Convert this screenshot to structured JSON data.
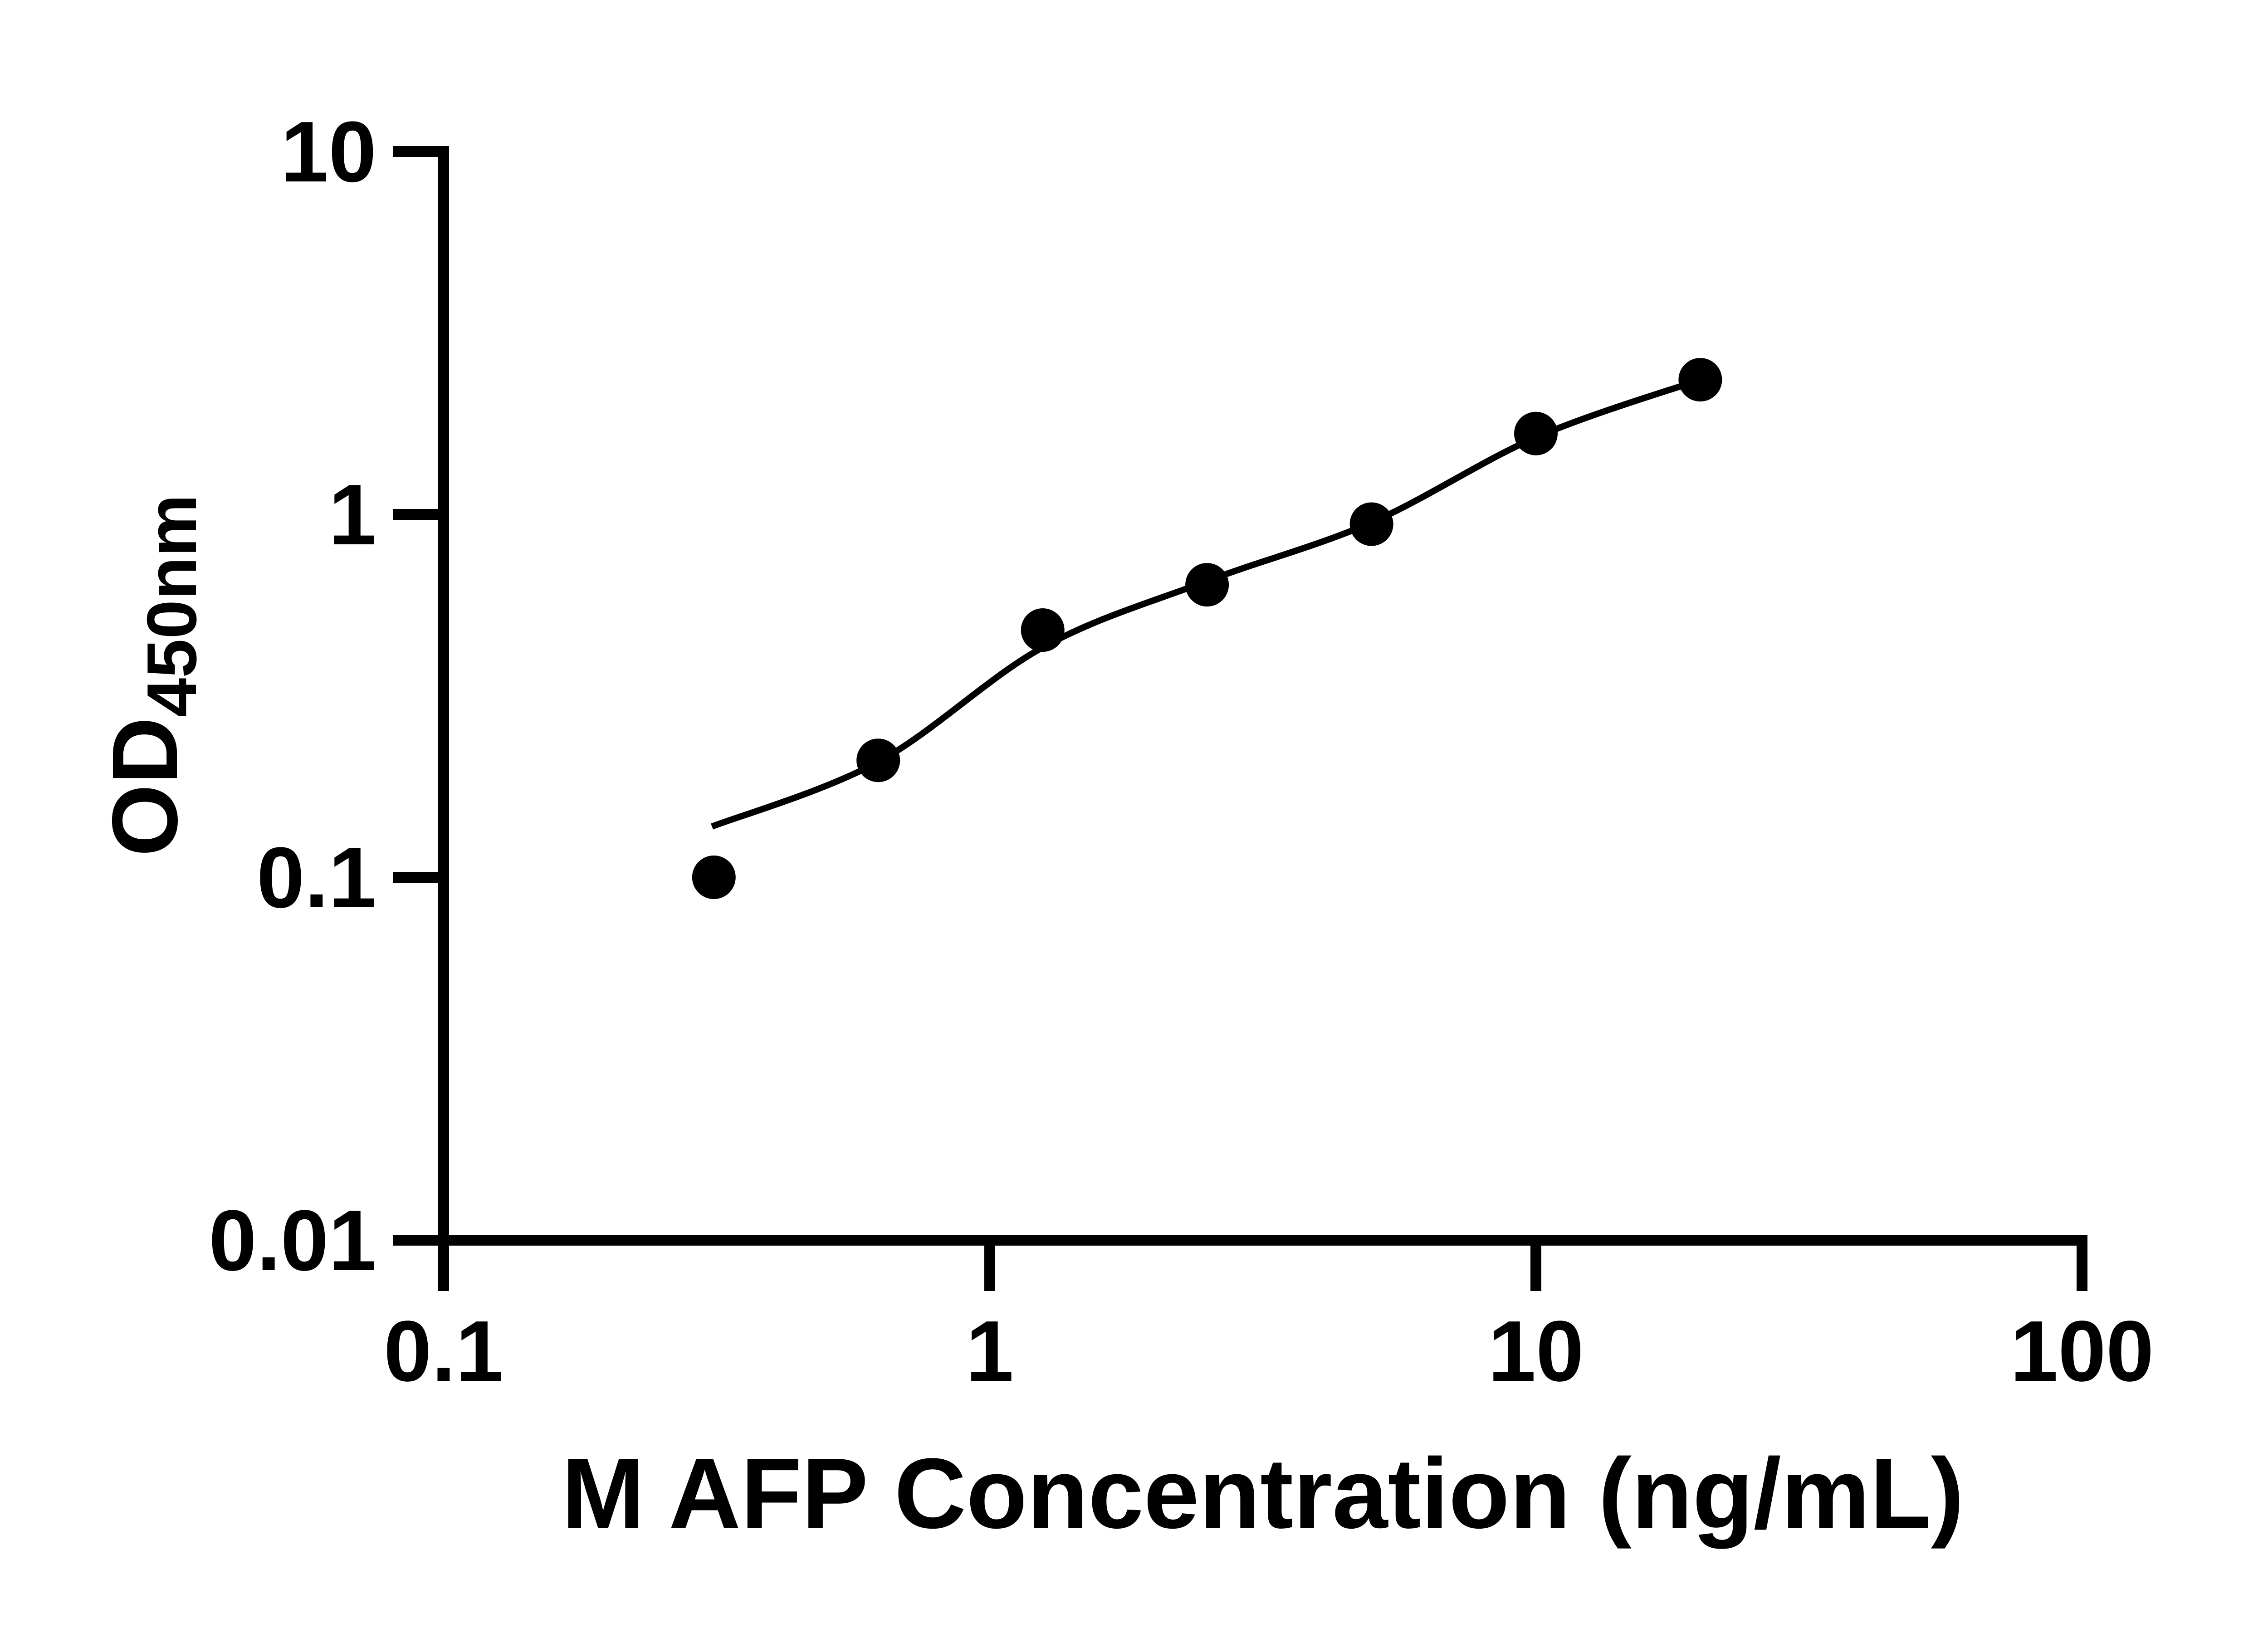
{
  "page": {
    "background": "#ffffff",
    "foreground": "#000000"
  },
  "chart_data": {
    "type": "scatter",
    "title": "",
    "xlabel": "M AFP Concentration (ng/mL)",
    "ylabel_main": "OD",
    "ylabel_sub": "450nm",
    "x_scale": "log",
    "y_scale": "log",
    "xlim": [
      0.1,
      100
    ],
    "ylim": [
      0.01,
      10
    ],
    "grid": false,
    "legend": null,
    "axis_color": "#000000",
    "marker_color": "#000000",
    "line_color": "#000000",
    "x_ticks": [
      {
        "value": 0.1,
        "label": "0.1"
      },
      {
        "value": 1,
        "label": "1"
      },
      {
        "value": 10,
        "label": "10"
      },
      {
        "value": 100,
        "label": "100"
      }
    ],
    "y_ticks": [
      {
        "value": 0.01,
        "label": "0.01"
      },
      {
        "value": 0.1,
        "label": "0.1"
      },
      {
        "value": 1,
        "label": "1"
      },
      {
        "value": 10,
        "label": "10"
      }
    ],
    "points": [
      {
        "x": 0.3125,
        "od": 0.1
      },
      {
        "x": 0.625,
        "od": 0.21
      },
      {
        "x": 1.25,
        "od": 0.48
      },
      {
        "x": 2.5,
        "od": 0.64
      },
      {
        "x": 5,
        "od": 0.94
      },
      {
        "x": 10,
        "od": 1.67
      },
      {
        "x": 20,
        "od": 2.35
      }
    ],
    "trend_line": {
      "anchors": [
        {
          "x": 0.31,
          "od": 0.138
        },
        {
          "x": 0.625,
          "od": 0.208
        },
        {
          "x": 1.25,
          "od": 0.43
        },
        {
          "x": 2.5,
          "od": 0.655
        },
        {
          "x": 5,
          "od": 0.95
        },
        {
          "x": 10,
          "od": 1.63
        },
        {
          "x": 20,
          "od": 2.35
        }
      ]
    }
  }
}
